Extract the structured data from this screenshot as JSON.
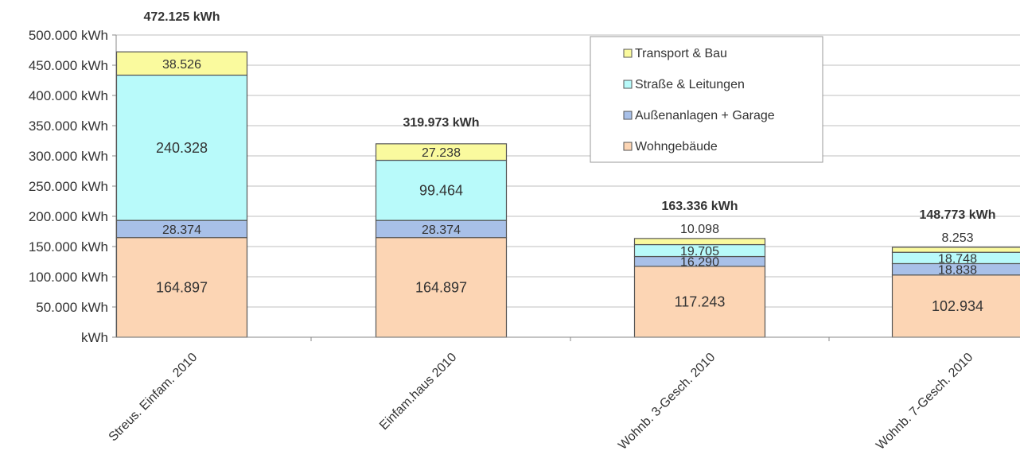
{
  "chart_data": {
    "type": "bar",
    "stacked": true,
    "categories": [
      "Streus. Einfam. 2010",
      "Einfam.haus 2010",
      "Wohnb. 3-Gesch. 2010",
      "Wohnb. 7-Gesch. 2010"
    ],
    "series": [
      {
        "name": "Wohngebäude",
        "color": "#fcd5b4",
        "values": [
          164897,
          164897,
          117243,
          102934
        ],
        "labels": [
          "164.897",
          "164.897",
          "117.243",
          "102.934"
        ]
      },
      {
        "name": "Außenanlagen + Garage",
        "color": "#a8c0e8",
        "values": [
          28374,
          28374,
          16290,
          18838
        ],
        "labels": [
          "28.374",
          "28.374",
          "16.290",
          "18.838"
        ]
      },
      {
        "name": "Straße & Leitungen",
        "color": "#b8fafa",
        "values": [
          240328,
          99464,
          19705,
          18748
        ],
        "labels": [
          "240.328",
          "99.464",
          "19.705",
          "18.748"
        ]
      },
      {
        "name": "Transport & Bau",
        "color": "#fafa9e",
        "values": [
          38526,
          27238,
          10098,
          8253
        ],
        "labels": [
          "38.526",
          "27.238",
          "10.098",
          "8.253"
        ]
      }
    ],
    "totals": [
      "472.125 kWh",
      "319.973 kWh",
      "163.336 kWh",
      "148.773 kWh"
    ],
    "yticks": [
      "kWh",
      "50.000  kWh",
      "100.000  kWh",
      "150.000  kWh",
      "200.000  kWh",
      "250.000  kWh",
      "300.000  kWh",
      "350.000  kWh",
      "400.000  kWh",
      "450.000  kWh",
      "500.000  kWh"
    ],
    "ylim": [
      0,
      500000
    ],
    "ytick_step": 50000,
    "grid": true,
    "legend_position": "top-right",
    "legend_order": [
      "Transport & Bau",
      "Straße & Leitungen",
      "Außenanlagen + Garage",
      "Wohngebäude"
    ]
  }
}
